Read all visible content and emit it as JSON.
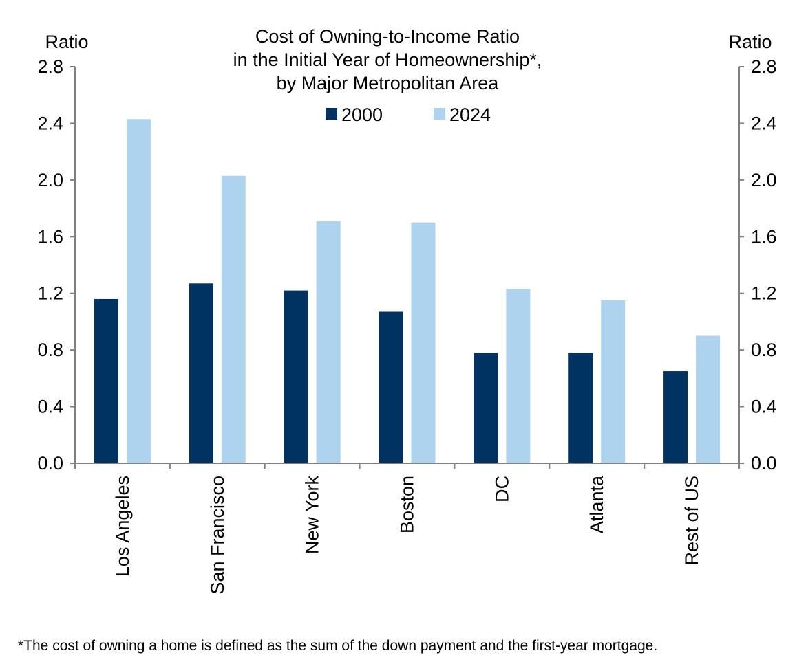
{
  "chart_data": {
    "type": "bar",
    "title": [
      "Cost of Owning-to-Income Ratio",
      "in the Initial Year of Homeownership*,",
      "by Major Metropolitan Area"
    ],
    "ylabel_left": "Ratio",
    "ylabel_right": "Ratio",
    "ylim": [
      0,
      2.8
    ],
    "yticks": [
      "0.0",
      "0.4",
      "0.8",
      "1.2",
      "1.6",
      "2.0",
      "2.4",
      "2.8"
    ],
    "categories": [
      "Los Angeles",
      "San Francisco",
      "New York",
      "Boston",
      "DC",
      "Atlanta",
      "Rest of US"
    ],
    "series": [
      {
        "name": "2000",
        "color": "#003361",
        "values": [
          1.16,
          1.27,
          1.22,
          1.07,
          0.78,
          0.78,
          0.65
        ]
      },
      {
        "name": "2024",
        "color": "#AED3EF",
        "values": [
          2.43,
          2.03,
          1.71,
          1.7,
          1.23,
          1.15,
          0.9
        ]
      }
    ],
    "legend_position": "top-center",
    "grid": false
  },
  "footnote": "*The cost of owning a home is defined as the sum of the down payment and the first-year mortgage."
}
